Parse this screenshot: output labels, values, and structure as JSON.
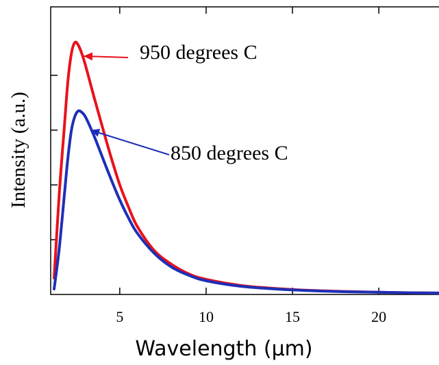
{
  "chart_data": {
    "type": "line",
    "title": "",
    "xlabel": "Wavelength (µm)",
    "ylabel": "Intensity (a.u.)",
    "xlim": [
      1,
      24
    ],
    "ylim": [
      0,
      1.05
    ],
    "xticks": [
      5,
      10,
      15,
      20
    ],
    "yticks": [
      0.2,
      0.4,
      0.6,
      0.8
    ],
    "grid": false,
    "legend": "none",
    "series": [
      {
        "color": "#e8121c",
        "x": [
          1.2,
          1.5,
          1.8,
          2.0,
          2.2,
          2.4,
          2.6,
          2.8,
          3.0,
          3.3,
          3.6,
          4.0,
          4.5,
          5.0,
          5.5,
          6.0,
          7.0,
          8.0,
          9.0,
          10.0,
          12.0,
          14.0,
          16.0,
          18.0,
          20.0,
          22.0,
          24.0
        ],
        "y": [
          0.06,
          0.37,
          0.62,
          0.78,
          0.88,
          0.92,
          0.91,
          0.88,
          0.84,
          0.77,
          0.7,
          0.61,
          0.5,
          0.4,
          0.32,
          0.25,
          0.16,
          0.11,
          0.075,
          0.055,
          0.033,
          0.022,
          0.015,
          0.011,
          0.008,
          0.006,
          0.005
        ]
      },
      {
        "color": "#1d2fb8",
        "x": [
          1.2,
          1.5,
          1.8,
          2.0,
          2.2,
          2.4,
          2.6,
          2.8,
          3.0,
          3.3,
          3.6,
          4.0,
          4.5,
          5.0,
          5.5,
          6.0,
          7.0,
          8.0,
          9.0,
          10.0,
          12.0,
          14.0,
          16.0,
          18.0,
          20.0,
          22.0,
          24.0
        ],
        "y": [
          0.02,
          0.17,
          0.37,
          0.5,
          0.6,
          0.65,
          0.67,
          0.665,
          0.65,
          0.61,
          0.565,
          0.5,
          0.42,
          0.345,
          0.28,
          0.225,
          0.15,
          0.1,
          0.07,
          0.05,
          0.03,
          0.02,
          0.014,
          0.01,
          0.008,
          0.006,
          0.005
        ]
      }
    ],
    "annotations": [
      {
        "text": "950 degrees C",
        "color": "#e8121c",
        "arrow_to": [
          2.9,
          0.87
        ]
      },
      {
        "text": "850 degrees C",
        "color": "#1d2fb8",
        "arrow_to": [
          3.3,
          0.6
        ]
      }
    ]
  }
}
